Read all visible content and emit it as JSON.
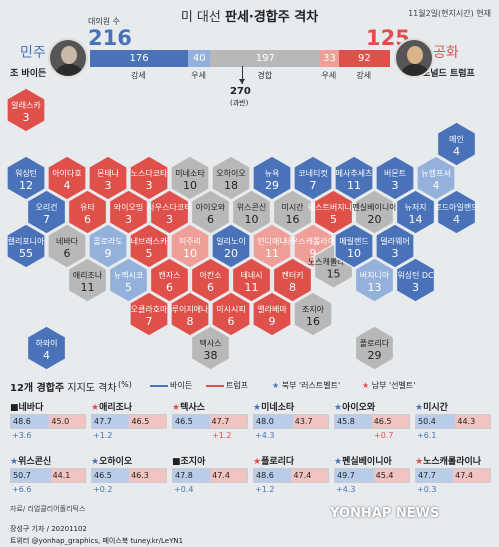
{
  "header": {
    "title_pre": "미 대선 ",
    "title_bold": "판세·경합주 격차",
    "date": "11월2일(현지시간) 현재",
    "electors_label": "대의원 수"
  },
  "candidates": {
    "dem": {
      "party": "민주",
      "name": "조 바이든",
      "electors": "216"
    },
    "rep": {
      "party": "공화",
      "name": "도널드 트럼프",
      "electors": "125"
    }
  },
  "bar": {
    "segments": [
      {
        "value": "176",
        "label": "강세",
        "kind": "sd"
      },
      {
        "value": "40",
        "label": "우세",
        "kind": "ld"
      },
      {
        "value": "197",
        "label": "경합",
        "kind": "tu"
      },
      {
        "value": "33",
        "label": "우세",
        "kind": "lr"
      },
      {
        "value": "92",
        "label": "강세",
        "kind": "sr"
      }
    ],
    "majority_value": "270",
    "majority_label": "(과반)"
  },
  "colors": {
    "solid_dem": "#4a72b8",
    "lean_dem": "#93b1db",
    "tossup": "#b8b8b8",
    "lean_rep": "#ef9e98",
    "solid_rep": "#e0504a"
  },
  "map_states": [
    {
      "name": "알래스카",
      "ev": "3",
      "kind": "sr",
      "col": 0,
      "row": 0
    },
    {
      "name": "메인",
      "ev": "4",
      "kind": "sd",
      "col": 10,
      "row": 1
    },
    {
      "name": "워싱턴",
      "ev": "12",
      "kind": "sd",
      "col": 0,
      "row": 2
    },
    {
      "name": "아이다호",
      "ev": "4",
      "kind": "sr",
      "col": 1,
      "row": 2
    },
    {
      "name": "몬태나",
      "ev": "3",
      "kind": "sr",
      "col": 2,
      "row": 2
    },
    {
      "name": "노스다코타",
      "ev": "3",
      "kind": "sr",
      "col": 3,
      "row": 2
    },
    {
      "name": "미네소타",
      "ev": "10",
      "kind": "tu",
      "col": 4,
      "row": 2
    },
    {
      "name": "오하이오",
      "ev": "18",
      "kind": "tu",
      "col": 5,
      "row": 2
    },
    {
      "name": "뉴욕",
      "ev": "29",
      "kind": "sd",
      "col": 6,
      "row": 2
    },
    {
      "name": "코네티컷",
      "ev": "7",
      "kind": "sd",
      "col": 7,
      "row": 2
    },
    {
      "name": "메사추세츠",
      "ev": "11",
      "kind": "sd",
      "col": 8,
      "row": 2
    },
    {
      "name": "버몬트",
      "ev": "3",
      "kind": "sd",
      "col": 9,
      "row": 2
    },
    {
      "name": "뉴햄프셔",
      "ev": "4",
      "kind": "ld",
      "col": 10,
      "row": 2
    },
    {
      "name": "오리건",
      "ev": "7",
      "kind": "sd",
      "col": 0,
      "row": 3
    },
    {
      "name": "유타",
      "ev": "6",
      "kind": "sr",
      "col": 1,
      "row": 3
    },
    {
      "name": "와이오밍",
      "ev": "3",
      "kind": "sr",
      "col": 2,
      "row": 3
    },
    {
      "name": "사우스다코타",
      "ev": "3",
      "kind": "sr",
      "col": 3,
      "row": 3
    },
    {
      "name": "아이오와",
      "ev": "6",
      "kind": "tu",
      "col": 4,
      "row": 3
    },
    {
      "name": "위스콘신",
      "ev": "10",
      "kind": "tu",
      "col": 5,
      "row": 3
    },
    {
      "name": "미시간",
      "ev": "16",
      "kind": "tu",
      "col": 6,
      "row": 3
    },
    {
      "name": "웨스트버지니아",
      "ev": "5",
      "kind": "sr",
      "col": 7,
      "row": 3
    },
    {
      "name": "펜실베이니아",
      "ev": "20",
      "kind": "tu",
      "col": 8,
      "row": 3
    },
    {
      "name": "뉴저지",
      "ev": "14",
      "kind": "sd",
      "col": 9,
      "row": 3
    },
    {
      "name": "로드아일랜드",
      "ev": "4",
      "kind": "sd",
      "col": 10,
      "row": 3
    },
    {
      "name": "캘리포니아",
      "ev": "55",
      "kind": "sd",
      "col": 0,
      "row": 4
    },
    {
      "name": "네바다",
      "ev": "6",
      "kind": "tu",
      "col": 1,
      "row": 4
    },
    {
      "name": "콜로라도",
      "ev": "9",
      "kind": "ld",
      "col": 2,
      "row": 4
    },
    {
      "name": "네브래스카",
      "ev": "5",
      "kind": "sr",
      "col": 3,
      "row": 4
    },
    {
      "name": "미주리",
      "ev": "10",
      "kind": "lr",
      "col": 4,
      "row": 4
    },
    {
      "name": "일리노이",
      "ev": "20",
      "kind": "sd",
      "col": 5,
      "row": 4
    },
    {
      "name": "인디애나",
      "ev": "11",
      "kind": "lr",
      "col": 6,
      "row": 4
    },
    {
      "name": "사우스캐롤라이나",
      "ev": "9",
      "kind": "lr",
      "col": 7,
      "row": 4
    },
    {
      "name": "노스캐롤라이나",
      "ev": "15",
      "kind": "tu",
      "col": 7,
      "row": 4.6
    },
    {
      "name": "메릴랜드",
      "ev": "10",
      "kind": "sd",
      "col": 8,
      "row": 4
    },
    {
      "name": "델라웨어",
      "ev": "3",
      "kind": "sd",
      "col": 9,
      "row": 4
    },
    {
      "name": "애리조나",
      "ev": "11",
      "kind": "tu",
      "col": 1,
      "row": 5
    },
    {
      "name": "뉴멕시코",
      "ev": "5",
      "kind": "ld",
      "col": 2,
      "row": 5
    },
    {
      "name": "캔자스",
      "ev": "6",
      "kind": "sr",
      "col": 3,
      "row": 5
    },
    {
      "name": "아칸소",
      "ev": "6",
      "kind": "sr",
      "col": 4,
      "row": 5
    },
    {
      "name": "테네시",
      "ev": "11",
      "kind": "sr",
      "col": 5,
      "row": 5
    },
    {
      "name": "켄터키",
      "ev": "8",
      "kind": "sr",
      "col": 6,
      "row": 5
    },
    {
      "name": "버지니아",
      "ev": "13",
      "kind": "ld",
      "col": 8,
      "row": 5
    },
    {
      "name": "워싱턴 DC",
      "ev": "3",
      "kind": "sd",
      "col": 9,
      "row": 5
    },
    {
      "name": "오클라호마",
      "ev": "7",
      "kind": "sr",
      "col": 3,
      "row": 6
    },
    {
      "name": "루이지애나",
      "ev": "8",
      "kind": "sr",
      "col": 4,
      "row": 6
    },
    {
      "name": "미시시피",
      "ev": "6",
      "kind": "sr",
      "col": 5,
      "row": 6
    },
    {
      "name": "앨라배마",
      "ev": "9",
      "kind": "sr",
      "col": 6,
      "row": 6
    },
    {
      "name": "조지아",
      "ev": "16",
      "kind": "tu",
      "col": 7,
      "row": 6
    },
    {
      "name": "하와이",
      "ev": "4",
      "kind": "sd",
      "col": 0,
      "row": 7
    },
    {
      "name": "텍사스",
      "ev": "38",
      "kind": "tu",
      "col": 4,
      "row": 7
    },
    {
      "name": "플로리다",
      "ev": "29",
      "kind": "tu",
      "col": 8,
      "row": 7
    }
  ],
  "swing": {
    "title": "12개 경합주",
    "subtitle": " 지지도 격차",
    "unit": "(%)",
    "legend_biden": "바이든",
    "legend_trump": "트럼프",
    "legend_north": "북부 '러스트벨트'",
    "legend_south": "남부 '선벨트'",
    "states": [
      {
        "name": "네바다",
        "star": "",
        "d": "48.6",
        "r": "45.0",
        "lead": "+3.6",
        "lead_side": "d"
      },
      {
        "name": "애리조나",
        "star": "south",
        "d": "47.7",
        "r": "46.5",
        "lead": "+1.2",
        "lead_side": "d"
      },
      {
        "name": "텍사스",
        "star": "south",
        "d": "46.5",
        "r": "47.7",
        "lead": "+1.2",
        "lead_side": "r"
      },
      {
        "name": "미네소타",
        "star": "north",
        "d": "48.0",
        "r": "43.7",
        "lead": "+4.3",
        "lead_side": "d"
      },
      {
        "name": "아이오와",
        "star": "north",
        "d": "45.8",
        "r": "46.5",
        "lead": "+0.7",
        "lead_side": "r"
      },
      {
        "name": "미시간",
        "star": "north",
        "d": "50.4",
        "r": "44.3",
        "lead": "+6.1",
        "lead_side": "d"
      },
      {
        "name": "위스콘신",
        "star": "north",
        "d": "50.7",
        "r": "44.1",
        "lead": "+6.6",
        "lead_side": "d"
      },
      {
        "name": "오하이오",
        "star": "north",
        "d": "46.5",
        "r": "46.3",
        "lead": "+0.2",
        "lead_side": "d"
      },
      {
        "name": "조지아",
        "star": "",
        "d": "47.8",
        "r": "47.4",
        "lead": "+0.4",
        "lead_side": "d"
      },
      {
        "name": "플로리다",
        "star": "south",
        "d": "48.6",
        "r": "47.4",
        "lead": "+1.2",
        "lead_side": "d"
      },
      {
        "name": "펜실베이니아",
        "star": "north",
        "d": "49.7",
        "r": "45.4",
        "lead": "+4.3",
        "lead_side": "d"
      },
      {
        "name": "노스캐롤라이나",
        "star": "south",
        "d": "47.7",
        "r": "47.4",
        "lead": "+0.3",
        "lead_side": "d"
      }
    ]
  },
  "footer": {
    "source": "자료/ 리얼클리어폴리틱스",
    "credit1": "장성구 기자 / 20201102",
    "credit2": "트위터 @yonhap_graphics, 페이스북 tuney.kr/LeYN1",
    "watermark": "YONHAP NEWS"
  }
}
